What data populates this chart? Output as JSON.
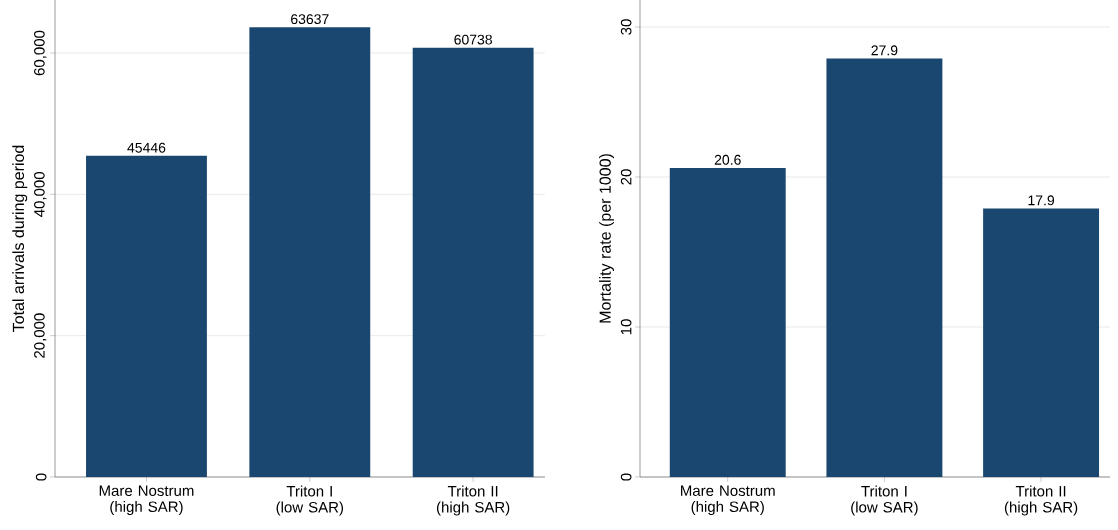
{
  "chart_data": [
    {
      "type": "bar",
      "categories": [
        "Mare Nostrum (high SAR)",
        "Triton I (low SAR)",
        "Triton II (high SAR)"
      ],
      "values": [
        45446,
        63637,
        60738
      ],
      "color": "#1a476f",
      "ylabel": "Total arrivals during period",
      "ylim": [
        0,
        67500
      ],
      "yticks": [
        0,
        {
          "value": 20000,
          "label": "20,000"
        },
        {
          "value": 40000,
          "label": "40,000"
        },
        {
          "value": 60000,
          "label": "60,000"
        }
      ],
      "grid": "y",
      "data_labels": true
    },
    {
      "type": "bar",
      "categories": [
        "Mare Nostrum (high SAR)",
        "Triton I (low SAR)",
        "Triton II (high SAR)"
      ],
      "values": [
        20.6,
        27.9,
        17.9
      ],
      "color": "#1a476f",
      "ylabel": "Mortality rate (per 1000)",
      "ylim": [
        0,
        31.8
      ],
      "yticks": [
        0,
        10,
        20,
        30
      ],
      "grid": "y",
      "data_labels": true
    }
  ]
}
